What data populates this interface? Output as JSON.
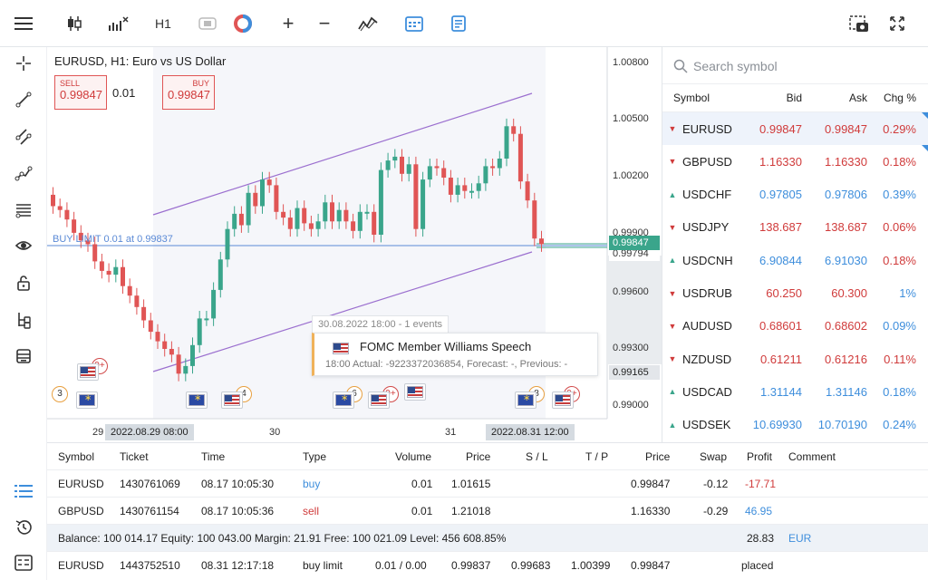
{
  "toolbar": {
    "timeframe": "H1",
    "icons": [
      "menu-icon",
      "candlestick-icon",
      "indicators-icon",
      "timeframe",
      "toggle-icon",
      "color-icon",
      "zoom-in-icon",
      "zoom-out-icon",
      "chart-type-icon",
      "calendar-icon",
      "note-icon",
      "screenshot-icon",
      "fullscreen-icon"
    ]
  },
  "left_tools": [
    "crosshair-icon",
    "line-icon",
    "channel-icon",
    "polyline-icon",
    "fibonacci-icon",
    "eye-icon",
    "lock-icon",
    "tree-icon",
    "layers-icon"
  ],
  "chart": {
    "title": "EURUSD, H1: Euro vs US Dollar",
    "sell_label": "SELL",
    "sell_price": "0.99847",
    "buy_label": "BUY",
    "buy_price": "0.99847",
    "volume": "0.01",
    "buy_limit_label": "BUY LIMIT 0.01 at 0.99837",
    "price_ticks": [
      "1.00800",
      "1.00500",
      "1.00200",
      "0.99900",
      "0.99600",
      "0.99300",
      "0.99000"
    ],
    "price_tag_current": "0.99847",
    "price_tag_low": "0.99794",
    "price_tag_marker": "0.99165",
    "time_ticks": [
      "29",
      "30",
      "31"
    ],
    "time_tags": [
      "2022.08.29 08:00",
      "2022.08.31 12:00"
    ],
    "tooltip_date": "30.08.2022 18:00 - 1 events",
    "tooltip_title": "FOMC Member Williams Speech",
    "tooltip_detail": "18:00  Actual: -9223372036854, Forecast: -, Previous: -",
    "events": [
      "9+",
      "3",
      "6",
      "9+",
      "8",
      "9+",
      "4"
    ],
    "colors": {
      "bull": "#3aa58b",
      "bear": "#e05555",
      "channel": "#9b6fcf",
      "buy_limit": "#5b8ad6"
    }
  },
  "chart_data": {
    "type": "candlestick",
    "symbol": "EURUSD",
    "timeframe": "H1",
    "ylim": [
      0.9885,
      1.0085
    ],
    "close_series": [
      1.0005,
      1.0003,
      0.9998,
      0.9991,
      0.9987,
      0.9985,
      0.9976,
      0.9971,
      0.9969,
      0.9973,
      0.9963,
      0.9958,
      0.9952,
      0.9945,
      0.9939,
      0.9934,
      0.993,
      0.9927,
      0.9917,
      0.9921,
      0.9932,
      0.9946,
      0.9946,
      0.9961,
      0.9977,
      0.9993,
      1.0001,
      0.9995,
      1.0012,
      1.0005,
      1.0019,
      1.0016,
      1.0002,
      0.9999,
      0.9993,
      1.0004,
      0.9996,
      0.9993,
      0.9997,
      1.0007,
      0.9997,
      1.0003,
      0.9997,
      0.9992,
      1.0002,
      1.0002,
      0.999,
      1.0024,
      1.0029,
      1.0031,
      1.0022,
      1.0027,
      0.9993,
      1.0019,
      1.0026,
      1.0025,
      1.002,
      1.0011,
      1.0016,
      1.0013,
      1.0013,
      1.0017,
      1.0026,
      1.0025,
      1.003,
      1.0047,
      1.0043,
      1.0018,
      1.0008,
      0.9988,
      0.9985
    ]
  },
  "watch": {
    "search_placeholder": "Search symbol",
    "headers": [
      "Symbol",
      "Bid",
      "Ask",
      "Chg %"
    ],
    "rows": [
      {
        "symbol": "EURUSD",
        "bid": "0.99847",
        "ask": "0.99847",
        "chg": "0.29%",
        "dir": "down"
      },
      {
        "symbol": "GBPUSD",
        "bid": "1.16330",
        "ask": "1.16330",
        "chg": "0.18%",
        "dir": "down"
      },
      {
        "symbol": "USDCHF",
        "bid": "0.97805",
        "ask": "0.97806",
        "chg": "0.39%",
        "dir": "up"
      },
      {
        "symbol": "USDJPY",
        "bid": "138.687",
        "ask": "138.687",
        "chg": "0.06%",
        "dir": "down"
      },
      {
        "symbol": "USDCNH",
        "bid": "6.90844",
        "ask": "6.91030",
        "chg": "0.18%",
        "dir": "up"
      },
      {
        "symbol": "USDRUB",
        "bid": "60.250",
        "ask": "60.300",
        "chg": "1%",
        "dir": "down"
      },
      {
        "symbol": "AUDUSD",
        "bid": "0.68601",
        "ask": "0.68602",
        "chg": "0.09%",
        "dir": "down"
      },
      {
        "symbol": "NZDUSD",
        "bid": "0.61211",
        "ask": "0.61216",
        "chg": "0.11%",
        "dir": "down"
      },
      {
        "symbol": "USDCAD",
        "bid": "1.31144",
        "ask": "1.31146",
        "chg": "0.18%",
        "dir": "up"
      },
      {
        "symbol": "USDSEK",
        "bid": "10.69930",
        "ask": "10.70190",
        "chg": "0.24%",
        "dir": "up"
      }
    ]
  },
  "toolbox": {
    "headers": [
      "Symbol",
      "Ticket",
      "Time",
      "Type",
      "Volume",
      "Price",
      "S / L",
      "T / P",
      "Price",
      "Swap",
      "Profit",
      "Comment"
    ],
    "rows": [
      {
        "symbol": "EURUSD",
        "ticket": "1430761069",
        "time": "08.17 10:05:30",
        "type": "buy",
        "volume": "0.01",
        "price": "1.01615",
        "sl": "",
        "tp": "",
        "cur": "0.99847",
        "swap": "-0.12",
        "profit": "-17.71",
        "comment": ""
      },
      {
        "symbol": "GBPUSD",
        "ticket": "1430761154",
        "time": "08.17 10:05:36",
        "type": "sell",
        "volume": "0.01",
        "price": "1.21018",
        "sl": "",
        "tp": "",
        "cur": "1.16330",
        "swap": "-0.29",
        "profit": "46.95",
        "comment": ""
      }
    ],
    "summary": "Balance: 100 014.17  Equity: 100 043.00  Margin: 21.91  Free: 100 021.09  Level: 456 608.85%",
    "summary_profit": "28.83",
    "summary_currency": "EUR",
    "order": {
      "symbol": "EURUSD",
      "ticket": "1443752510",
      "time": "08.31 12:17:18",
      "type": "buy limit",
      "volume": "0.01 / 0.00",
      "price": "0.99837",
      "sl": "0.99683",
      "tp": "1.00399",
      "cur": "0.99847",
      "comment": "placed"
    }
  }
}
